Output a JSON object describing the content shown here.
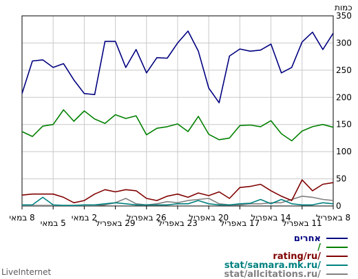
{
  "brand": "LiveInternet",
  "chart_data": {
    "type": "line",
    "ylabel": "כמות",
    "ylim": [
      0,
      350
    ],
    "yticks": [
      0,
      50,
      100,
      150,
      200,
      250,
      300,
      350
    ],
    "grid": true,
    "legend_position": "bottom-right",
    "x_tick_labels": [
      {
        "label": "8 באפריל",
        "index": 0,
        "row": 0
      },
      {
        "label": "11 באפריל",
        "index": 3,
        "row": 1
      },
      {
        "label": "14 באפריל",
        "index": 6,
        "row": 0
      },
      {
        "label": "17 באפריל",
        "index": 9,
        "row": 1
      },
      {
        "label": "20 באפריל",
        "index": 12,
        "row": 0
      },
      {
        "label": "23 באפריל",
        "index": 15,
        "row": 1
      },
      {
        "label": "26 באפריל",
        "index": 18,
        "row": 0
      },
      {
        "label": "29 באפריל",
        "index": 21,
        "row": 1
      },
      {
        "label": "2 במאי",
        "index": 24,
        "row": 0
      },
      {
        "label": "5 במאי",
        "index": 27,
        "row": 1
      },
      {
        "label": "8 במאי",
        "index": 30,
        "row": 0
      }
    ],
    "series": [
      {
        "name": "אחרים",
        "color": "#000080",
        "values": [
          318,
          288,
          320,
          302,
          255,
          245,
          298,
          287,
          285,
          289,
          276,
          190,
          217,
          285,
          322,
          300,
          272,
          273,
          245,
          288,
          255,
          303,
          303,
          205,
          207,
          232,
          262,
          255,
          269,
          267,
          207
        ]
      },
      {
        "name": "/",
        "color": "#008000",
        "values": [
          145,
          150,
          146,
          138,
          120,
          133,
          157,
          146,
          149,
          148,
          125,
          122,
          132,
          165,
          137,
          151,
          146,
          143,
          131,
          166,
          161,
          168,
          152,
          160,
          175,
          156,
          177,
          150,
          147,
          128,
          137
        ]
      },
      {
        "name": "rating/ru/",
        "color": "#800000",
        "values": [
          43,
          40,
          28,
          48,
          10,
          18,
          28,
          40,
          36,
          34,
          14,
          26,
          19,
          24,
          16,
          22,
          18,
          10,
          14,
          28,
          30,
          26,
          30,
          22,
          10,
          6,
          16,
          22,
          22,
          22,
          20
        ]
      },
      {
        "name": "stat/samara.mk.ru/",
        "color": "#008080",
        "values": [
          4,
          6,
          2,
          2,
          4,
          12,
          4,
          12,
          5,
          4,
          2,
          2,
          4,
          10,
          4,
          4,
          2,
          2,
          2,
          2,
          4,
          6,
          4,
          2,
          2,
          1,
          1,
          2,
          16,
          2,
          2
        ]
      },
      {
        "name": "stat/allcitations.ru/",
        "color": "#808080",
        "values": [
          10,
          12,
          16,
          18,
          12,
          6,
          6,
          4,
          4,
          2,
          2,
          4,
          14,
          12,
          10,
          6,
          8,
          4,
          2,
          4,
          14,
          6,
          2,
          1,
          1,
          1,
          1,
          1,
          1,
          1,
          1
        ]
      }
    ]
  }
}
